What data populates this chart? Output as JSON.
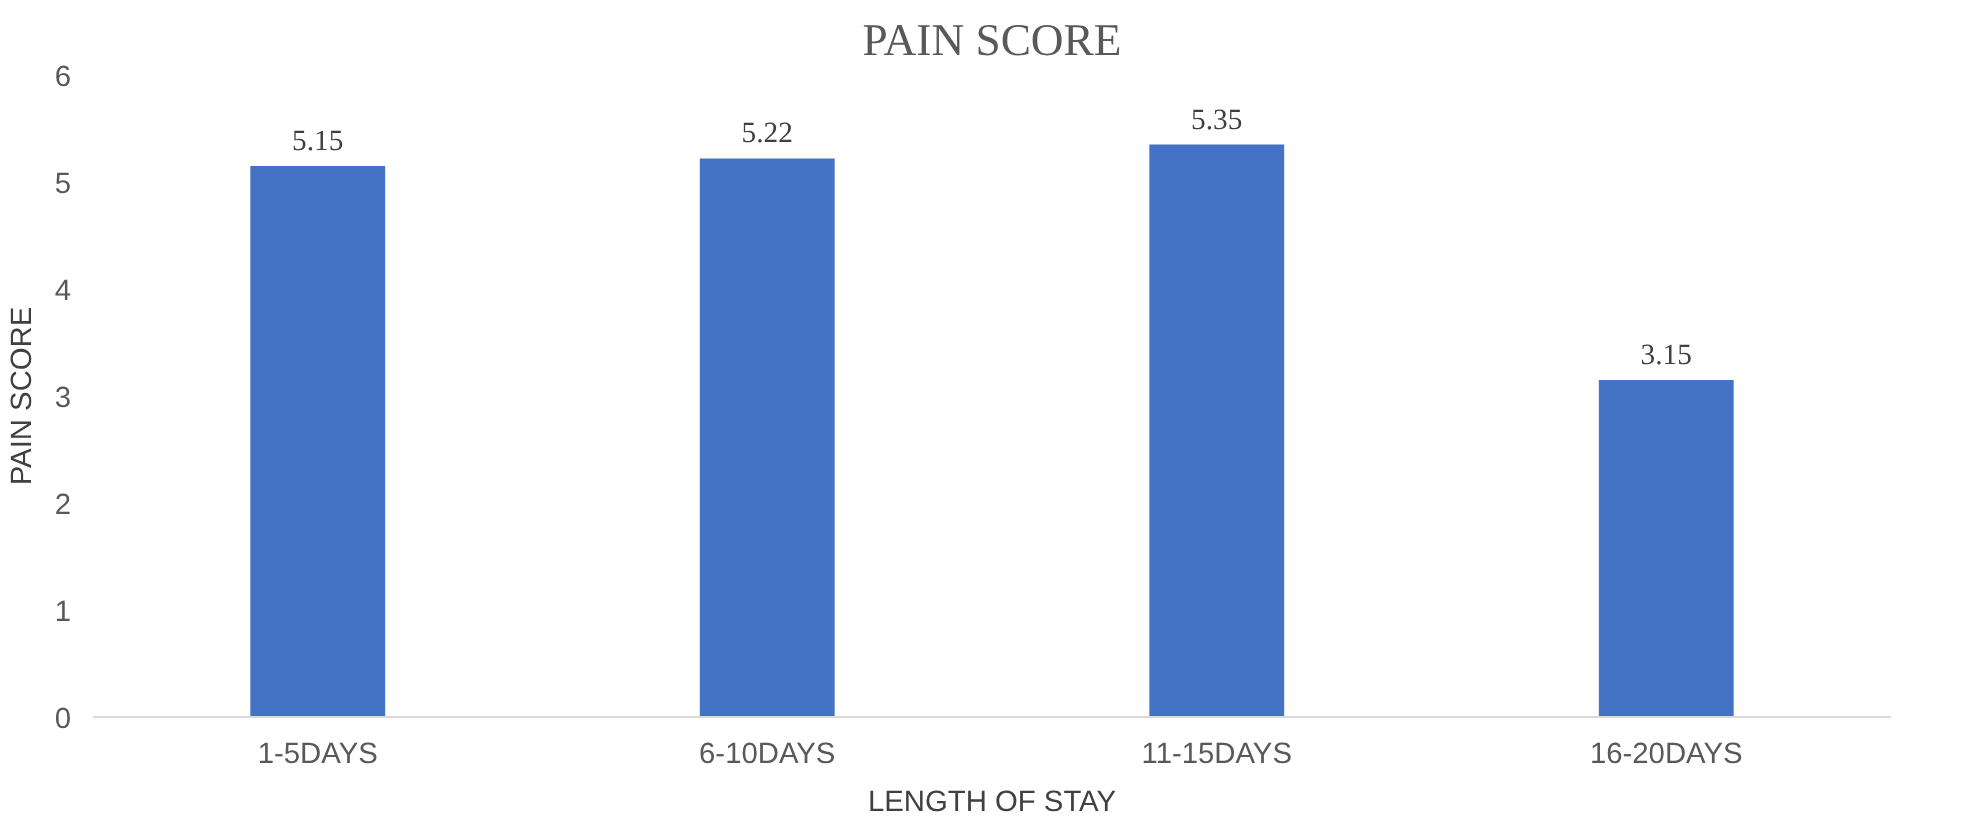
{
  "chart_data": {
    "type": "bar",
    "title": "PAIN SCORE",
    "xlabel": "LENGTH OF STAY",
    "ylabel": "PAIN SCORE",
    "categories": [
      "1-5DAYS",
      "6-10DAYS",
      "11-15DAYS",
      "16-20DAYS"
    ],
    "values": [
      5.15,
      5.22,
      5.35,
      3.15
    ],
    "color": "#4472c4",
    "ylim": [
      0,
      6
    ],
    "yticks": [
      0,
      1,
      2,
      3,
      4,
      5,
      6
    ],
    "grid": false,
    "data_labels": true
  }
}
